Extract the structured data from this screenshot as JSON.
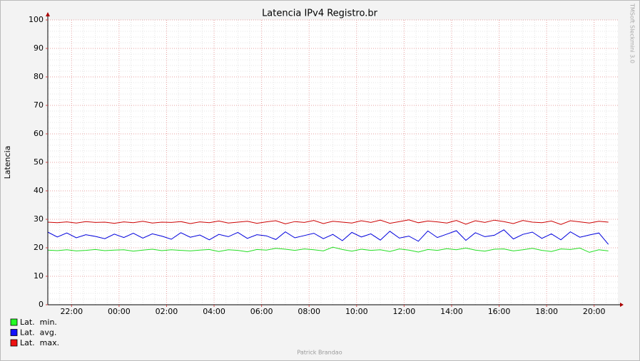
{
  "chart_data": {
    "type": "line",
    "title": "Latencia IPv4 Registro.br",
    "y_label": "Latencia",
    "watermark": "TMSoft Sleckmini 3.0",
    "footer": "Patrick Brandao",
    "grid": true,
    "xlim": [
      21,
      45
    ],
    "xticks": [
      {
        "value": 22,
        "label": "22:00"
      },
      {
        "value": 24,
        "label": "00:00"
      },
      {
        "value": 26,
        "label": "02:00"
      },
      {
        "value": 28,
        "label": "04:00"
      },
      {
        "value": 30,
        "label": "06:00"
      },
      {
        "value": 32,
        "label": "08:00"
      },
      {
        "value": 34,
        "label": "10:00"
      },
      {
        "value": 36,
        "label": "12:00"
      },
      {
        "value": 38,
        "label": "14:00"
      },
      {
        "value": 40,
        "label": "16:00"
      },
      {
        "value": 42,
        "label": "18:00"
      },
      {
        "value": 44,
        "label": "20:00"
      }
    ],
    "xminorticks": [
      21,
      21.5,
      22.5,
      23,
      23.5,
      24.5,
      25,
      25.5,
      26.5,
      27,
      27.5,
      28.5,
      29,
      29.5,
      30.5,
      31,
      31.5,
      32.5,
      33,
      33.5,
      34.5,
      35,
      35.5,
      36.5,
      37,
      37.5,
      38.5,
      39,
      39.5,
      40.5,
      41,
      41.5,
      42.5,
      43,
      43.5,
      44.5
    ],
    "ylim": [
      0,
      100
    ],
    "yticks": [
      0,
      10,
      20,
      30,
      40,
      50,
      60,
      70,
      80,
      90,
      100
    ],
    "yminorticks": [
      2,
      4,
      6,
      8,
      12,
      14,
      16,
      18,
      22,
      24,
      26,
      28,
      32,
      34,
      36,
      38,
      42,
      44,
      46,
      48,
      52,
      54,
      56,
      58,
      62,
      64,
      66,
      68,
      72,
      74,
      76,
      78,
      82,
      84,
      86,
      88,
      92,
      94,
      96,
      98
    ],
    "x": [
      21,
      21.4,
      21.8,
      22.2,
      22.6,
      23,
      23.4,
      23.8,
      24.2,
      24.6,
      25,
      25.4,
      25.8,
      26.2,
      26.6,
      27,
      27.4,
      27.8,
      28.2,
      28.6,
      29,
      29.4,
      29.8,
      30.2,
      30.6,
      31,
      31.4,
      31.8,
      32.2,
      32.6,
      33,
      33.4,
      33.8,
      34.2,
      34.6,
      35,
      35.4,
      35.8,
      36.2,
      36.6,
      37,
      37.4,
      37.8,
      38.2,
      38.6,
      39,
      39.4,
      39.8,
      40.2,
      40.6,
      41,
      41.4,
      41.8,
      42.2,
      42.6,
      43,
      43.4,
      43.8,
      44.2,
      44.6
    ],
    "series": [
      {
        "name": "Lat.  min.",
        "color": "#22dd22",
        "legend_color": "#22ff22",
        "values": [
          19.2,
          19,
          19.3,
          18.9,
          19.1,
          19.4,
          19,
          19.2,
          19.3,
          18.8,
          19.2,
          19.5,
          19,
          19.3,
          19.1,
          18.9,
          19.2,
          19.4,
          18.7,
          19.3,
          19.1,
          18.6,
          19.4,
          19.2,
          19.8,
          19.5,
          19.1,
          19.6,
          19.3,
          18.9,
          20.2,
          19.4,
          18.8,
          19.5,
          19.1,
          19.3,
          18.7,
          19.6,
          19.2,
          18.5,
          19.4,
          19.1,
          19.7,
          19.3,
          19.9,
          19.2,
          18.8,
          19.5,
          19.6,
          18.9,
          19.3,
          19.8,
          19.1,
          18.7,
          19.6,
          19.4,
          19.9,
          18.4,
          19.3,
          18.9
        ]
      },
      {
        "name": "Lat.  avg.",
        "color": "#0000dd",
        "legend_color": "#1111ff",
        "values": [
          25.5,
          23.8,
          25.2,
          23.5,
          24.6,
          24,
          23.2,
          24.8,
          23.6,
          25.1,
          23.4,
          24.9,
          24.1,
          23,
          25.3,
          23.7,
          24.5,
          22.8,
          24.7,
          23.9,
          25.4,
          23.3,
          24.6,
          24.2,
          22.9,
          25.6,
          23.5,
          24.3,
          25.1,
          23.2,
          24.7,
          22.5,
          25.4,
          23.8,
          24.9,
          22.7,
          25.8,
          23.4,
          24.1,
          22.3,
          25.9,
          23.6,
          24.8,
          26,
          22.6,
          25.3,
          23.9,
          24.4,
          26.3,
          23.1,
          24.7,
          25.5,
          23.3,
          24.9,
          22.8,
          25.6,
          23.7,
          24.5,
          25.2,
          21.2
        ]
      },
      {
        "name": "Lat.  max.",
        "color": "#cc0000",
        "legend_color": "#ee1111",
        "values": [
          29,
          28.8,
          29.1,
          28.7,
          29.2,
          28.9,
          29,
          28.6,
          29.1,
          28.8,
          29.3,
          28.7,
          29,
          28.9,
          29.2,
          28.5,
          29.1,
          28.8,
          29.4,
          28.7,
          29,
          29.3,
          28.6,
          29.1,
          29.5,
          28.4,
          29.2,
          28.9,
          29.6,
          28.5,
          29.3,
          29,
          28.7,
          29.5,
          28.9,
          29.7,
          28.6,
          29.2,
          29.8,
          28.8,
          29.4,
          29.1,
          28.7,
          29.6,
          28.3,
          29.5,
          28.9,
          29.7,
          29.2,
          28.5,
          29.6,
          29,
          28.8,
          29.4,
          28.2,
          29.5,
          29.1,
          28.7,
          29.3,
          29
        ]
      }
    ]
  }
}
